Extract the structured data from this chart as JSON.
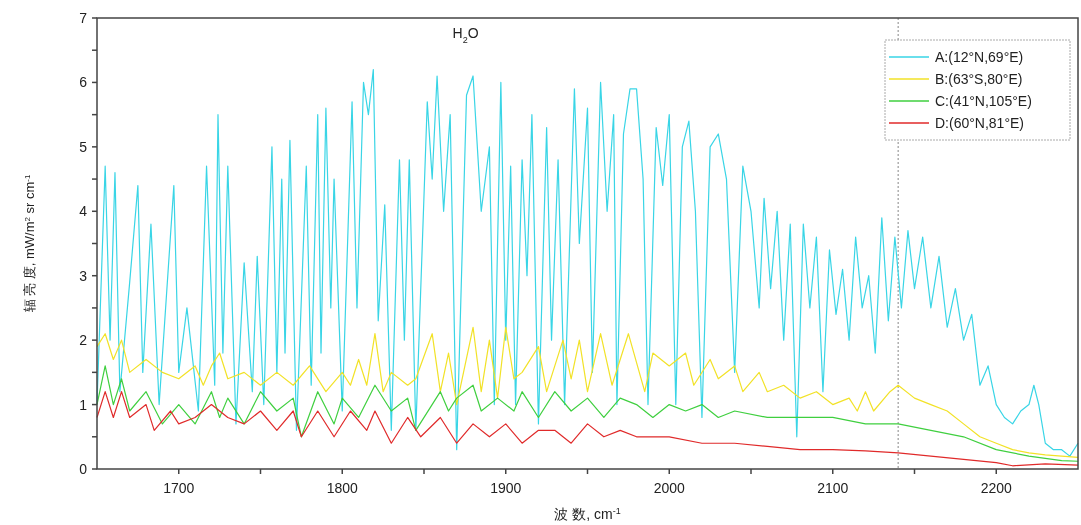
{
  "chart_data": {
    "type": "line",
    "xlabel": "波 数, cm$^{-1}$",
    "ylabel": "辐 亮 度, mW/m$^{2}$ sr cm$^{-1}$",
    "annotations": [
      "H$_{2}$O"
    ],
    "xlim": [
      1650,
      2250
    ],
    "ylim": [
      0,
      7
    ],
    "xticks": [
      1700,
      {
        "value": 1750,
        "label": null
      },
      1800,
      {
        "value": 1850,
        "label": null
      },
      1900,
      {
        "value": 1950,
        "label": null
      },
      2000,
      {
        "value": 2050,
        "label": null
      },
      2100,
      {
        "value": 2150,
        "label": null
      },
      2200
    ],
    "yticks": [
      0,
      {
        "value": 0.5,
        "label": null
      },
      1,
      {
        "value": 1.5,
        "label": null
      },
      2,
      {
        "value": 2.5,
        "label": null
      },
      3,
      {
        "value": 3.5,
        "label": null
      },
      4,
      {
        "value": 4.5,
        "label": null
      },
      5,
      {
        "value": 5.5,
        "label": null
      },
      6,
      {
        "value": 6.5,
        "label": null
      },
      7
    ],
    "legend": "top right",
    "ref_lines": [
      {
        "axis": "x",
        "value": 2140,
        "color": "#888888",
        "line_style": "dotted"
      }
    ],
    "series": [
      {
        "name": "A:(12°N,69°E)",
        "color": "#39d5e6",
        "x": [
          1650,
          1655,
          1658,
          1661,
          1664,
          1670,
          1675,
          1678,
          1683,
          1688,
          1697,
          1700,
          1705,
          1712,
          1717,
          1722,
          1724,
          1727,
          1730,
          1735,
          1740,
          1745,
          1748,
          1752,
          1757,
          1760,
          1763,
          1765,
          1768,
          1772,
          1778,
          1781,
          1785,
          1787,
          1790,
          1793,
          1795,
          1800,
          1806,
          1809,
          1813,
          1816,
          1819,
          1822,
          1826,
          1830,
          1835,
          1838,
          1841,
          1845,
          1852,
          1855,
          1858,
          1862,
          1866,
          1870,
          1876,
          1880,
          1885,
          1890,
          1893,
          1897,
          1900,
          1903,
          1906,
          1910,
          1913,
          1916,
          1920,
          1925,
          1928,
          1932,
          1936,
          1942,
          1945,
          1950,
          1953,
          1958,
          1962,
          1966,
          1968,
          1972,
          1976,
          1980,
          1984,
          1987,
          1992,
          1996,
          2000,
          2004,
          2008,
          2012,
          2016,
          2020,
          2025,
          2030,
          2035,
          2040,
          2045,
          2050,
          2055,
          2058,
          2062,
          2066,
          2070,
          2074,
          2078,
          2082,
          2086,
          2090,
          2094,
          2098,
          2102,
          2106,
          2110,
          2114,
          2118,
          2122,
          2126,
          2130,
          2134,
          2138,
          2142,
          2146,
          2150,
          2155,
          2160,
          2165,
          2170,
          2175,
          2180,
          2185,
          2190,
          2195,
          2200,
          2205,
          2210,
          2215,
          2220,
          2223,
          2226,
          2230,
          2235,
          2240,
          2245,
          2250
        ],
        "values": [
          1.0,
          4.7,
          2.0,
          4.6,
          1.2,
          2.9,
          4.4,
          1.5,
          3.8,
          1.0,
          4.4,
          1.5,
          2.5,
          0.9,
          4.7,
          1.3,
          5.5,
          1.8,
          4.7,
          0.7,
          3.2,
          1.2,
          3.3,
          1.0,
          5.0,
          1.5,
          4.5,
          1.8,
          5.1,
          0.6,
          4.7,
          1.3,
          5.5,
          1.8,
          5.6,
          2.5,
          4.5,
          0.9,
          5.7,
          2.5,
          6.0,
          5.5,
          6.2,
          2.3,
          4.1,
          0.6,
          4.8,
          2.0,
          4.8,
          0.6,
          5.7,
          4.5,
          6.1,
          4.0,
          5.5,
          0.3,
          5.8,
          6.1,
          4.0,
          5.0,
          1.0,
          6.0,
          2.0,
          4.7,
          1.0,
          4.8,
          3.0,
          5.5,
          0.7,
          5.3,
          2.0,
          4.8,
          1.0,
          5.9,
          3.5,
          5.6,
          1.5,
          6.0,
          4.0,
          5.5,
          1.0,
          5.2,
          5.9,
          5.9,
          4.5,
          1.0,
          5.3,
          4.4,
          5.5,
          1.0,
          5.0,
          5.4,
          4.0,
          0.8,
          5.0,
          5.2,
          4.5,
          1.5,
          4.7,
          4.0,
          2.5,
          4.2,
          2.8,
          4.0,
          2.0,
          3.8,
          0.5,
          3.8,
          2.5,
          3.6,
          1.2,
          3.4,
          2.4,
          3.1,
          2.0,
          3.6,
          2.5,
          3.0,
          1.8,
          3.9,
          2.3,
          3.6,
          2.5,
          3.7,
          2.8,
          3.6,
          2.5,
          3.3,
          2.2,
          2.8,
          2.0,
          2.4,
          1.3,
          1.6,
          1.0,
          0.8,
          0.7,
          0.9,
          1.0,
          1.3,
          1.0,
          0.4,
          0.3,
          0.3,
          0.2,
          0.4
        ]
      },
      {
        "name": "B:(63°S,80°E)",
        "color": "#f2e227",
        "x": [
          1650,
          1655,
          1660,
          1665,
          1670,
          1680,
          1690,
          1700,
          1710,
          1715,
          1720,
          1725,
          1730,
          1740,
          1750,
          1760,
          1770,
          1780,
          1790,
          1800,
          1805,
          1810,
          1815,
          1820,
          1825,
          1830,
          1840,
          1845,
          1855,
          1860,
          1865,
          1870,
          1880,
          1885,
          1890,
          1895,
          1900,
          1905,
          1910,
          1920,
          1925,
          1935,
          1940,
          1945,
          1950,
          1958,
          1965,
          1975,
          1985,
          1990,
          2000,
          2010,
          2015,
          2025,
          2030,
          2040,
          2045,
          2055,
          2060,
          2070,
          2080,
          2090,
          2100,
          2110,
          2115,
          2120,
          2125,
          2135,
          2140,
          2150,
          2160,
          2170,
          2180,
          2190,
          2200,
          2210,
          2220,
          2230,
          2240,
          2250
        ],
        "values": [
          1.9,
          2.1,
          1.7,
          2.0,
          1.5,
          1.7,
          1.5,
          1.4,
          1.6,
          1.3,
          1.6,
          1.8,
          1.4,
          1.5,
          1.3,
          1.5,
          1.3,
          1.6,
          1.2,
          1.5,
          1.3,
          1.7,
          1.3,
          2.1,
          1.2,
          1.5,
          1.3,
          1.4,
          2.1,
          1.2,
          1.8,
          1.0,
          2.2,
          1.2,
          2.0,
          1.1,
          2.2,
          1.4,
          1.5,
          1.9,
          1.2,
          2.0,
          1.4,
          2.0,
          1.2,
          2.1,
          1.3,
          2.1,
          1.2,
          1.8,
          1.6,
          1.8,
          1.3,
          1.7,
          1.4,
          1.6,
          1.2,
          1.5,
          1.2,
          1.3,
          1.1,
          1.2,
          1.0,
          1.1,
          0.9,
          1.2,
          0.9,
          1.2,
          1.3,
          1.1,
          1.0,
          0.9,
          0.7,
          0.5,
          0.4,
          0.3,
          0.25,
          0.22,
          0.2,
          0.18
        ]
      },
      {
        "name": "C:(41°N,105°E)",
        "color": "#3fcf3f",
        "x": [
          1650,
          1655,
          1660,
          1665,
          1670,
          1680,
          1690,
          1700,
          1710,
          1720,
          1725,
          1730,
          1740,
          1750,
          1760,
          1770,
          1775,
          1785,
          1795,
          1800,
          1810,
          1820,
          1830,
          1840,
          1845,
          1860,
          1865,
          1870,
          1880,
          1885,
          1895,
          1905,
          1910,
          1920,
          1930,
          1940,
          1950,
          1960,
          1970,
          1980,
          1990,
          2000,
          2010,
          2020,
          2030,
          2040,
          2060,
          2080,
          2100,
          2120,
          2140,
          2160,
          2180,
          2200,
          2220,
          2240,
          2250
        ],
        "values": [
          1.0,
          1.6,
          1.0,
          1.4,
          0.9,
          1.2,
          0.7,
          1.0,
          0.7,
          1.2,
          0.8,
          1.1,
          0.7,
          1.2,
          0.9,
          1.1,
          0.5,
          1.2,
          0.7,
          1.1,
          0.8,
          1.3,
          0.9,
          1.1,
          0.6,
          1.2,
          0.9,
          1.1,
          1.3,
          0.9,
          1.1,
          0.9,
          1.2,
          0.8,
          1.2,
          0.9,
          1.1,
          0.8,
          1.1,
          1.0,
          0.8,
          1.0,
          0.9,
          1.0,
          0.8,
          0.9,
          0.8,
          0.8,
          0.8,
          0.7,
          0.7,
          0.6,
          0.5,
          0.3,
          0.2,
          0.13,
          0.12
        ]
      },
      {
        "name": "D:(60°N,81°E)",
        "color": "#e02a2a",
        "x": [
          1650,
          1655,
          1660,
          1665,
          1670,
          1680,
          1685,
          1695,
          1700,
          1710,
          1720,
          1730,
          1740,
          1750,
          1760,
          1770,
          1775,
          1785,
          1795,
          1805,
          1815,
          1820,
          1830,
          1840,
          1848,
          1860,
          1870,
          1880,
          1890,
          1900,
          1910,
          1920,
          1930,
          1940,
          1950,
          1960,
          1970,
          1980,
          2000,
          2020,
          2040,
          2060,
          2080,
          2100,
          2120,
          2140,
          2160,
          2180,
          2200,
          2210,
          2230,
          2250
        ],
        "values": [
          0.8,
          1.2,
          0.8,
          1.2,
          0.8,
          1.0,
          0.6,
          0.9,
          0.7,
          0.8,
          1.0,
          0.8,
          0.7,
          0.9,
          0.6,
          0.9,
          0.5,
          0.9,
          0.5,
          0.9,
          0.6,
          0.9,
          0.4,
          0.8,
          0.5,
          0.8,
          0.4,
          0.7,
          0.5,
          0.7,
          0.4,
          0.6,
          0.6,
          0.4,
          0.7,
          0.5,
          0.6,
          0.5,
          0.5,
          0.4,
          0.4,
          0.35,
          0.3,
          0.3,
          0.28,
          0.25,
          0.2,
          0.15,
          0.1,
          0.05,
          0.08,
          0.06
        ]
      }
    ]
  }
}
